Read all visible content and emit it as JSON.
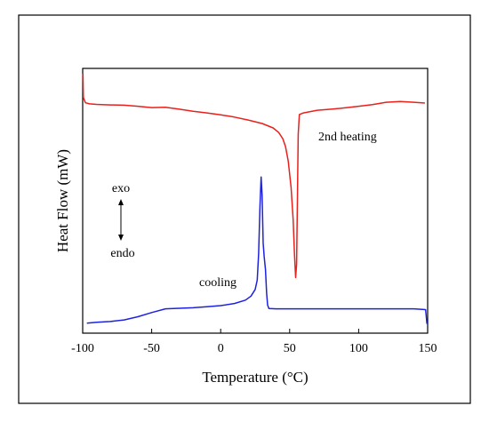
{
  "chart_data": {
    "type": "line",
    "title": "",
    "xlabel": "Temperature (°C)",
    "ylabel": "Heat Flow (mW)",
    "xlim": [
      -100,
      150
    ],
    "x_ticks": [
      "-100",
      "-50",
      "0",
      "50",
      "100",
      "150"
    ],
    "x_tick_values": [
      -100,
      -50,
      0,
      50,
      100,
      150
    ],
    "y_ticks": [],
    "ylim": [
      0,
      100
    ],
    "grid": false,
    "legend": "none",
    "annotations": {
      "heating_label": "2nd heating",
      "cooling_label": "cooling",
      "exo_label": "exo",
      "endo_label": "endo"
    },
    "series": [
      {
        "name": "2nd heating",
        "color": "#e8211c",
        "points": [
          [
            -99.8,
            98
          ],
          [
            -99.5,
            89
          ],
          [
            -98,
            87
          ],
          [
            -95,
            86.6
          ],
          [
            -90,
            86.4
          ],
          [
            -80,
            86.2
          ],
          [
            -70,
            86.1
          ],
          [
            -60,
            85.7
          ],
          [
            -50,
            85.2
          ],
          [
            -40,
            85.3
          ],
          [
            -30,
            84.6
          ],
          [
            -20,
            83.8
          ],
          [
            -10,
            83.2
          ],
          [
            0,
            82.5
          ],
          [
            10,
            81.6
          ],
          [
            20,
            80.5
          ],
          [
            30,
            79.2
          ],
          [
            38,
            77.5
          ],
          [
            42,
            75.8
          ],
          [
            45,
            73.5
          ],
          [
            47,
            70.5
          ],
          [
            49,
            65
          ],
          [
            51,
            55
          ],
          [
            52.5,
            43
          ],
          [
            53.5,
            30
          ],
          [
            54.3,
            21
          ],
          [
            55,
            26
          ],
          [
            55.6,
            50
          ],
          [
            56.2,
            75
          ],
          [
            57,
            82.6
          ],
          [
            60,
            83.2
          ],
          [
            70,
            84.2
          ],
          [
            80,
            84.6
          ],
          [
            90,
            85.1
          ],
          [
            100,
            85.7
          ],
          [
            110,
            86.3
          ],
          [
            120,
            87.2
          ],
          [
            130,
            87.5
          ],
          [
            140,
            87.2
          ],
          [
            148,
            86.9
          ]
        ]
      },
      {
        "name": "cooling",
        "color": "#1e22e0",
        "points": [
          [
            -97,
            3.8
          ],
          [
            -90,
            4.1
          ],
          [
            -80,
            4.4
          ],
          [
            -70,
            5.0
          ],
          [
            -60,
            6.2
          ],
          [
            -50,
            7.8
          ],
          [
            -40,
            9.2
          ],
          [
            -30,
            9.4
          ],
          [
            -20,
            9.6
          ],
          [
            -10,
            10
          ],
          [
            0,
            10.4
          ],
          [
            10,
            11.2
          ],
          [
            18,
            12.5
          ],
          [
            22,
            14
          ],
          [
            25,
            16.5
          ],
          [
            26.5,
            20
          ],
          [
            27.5,
            30
          ],
          [
            28.5,
            48
          ],
          [
            29.3,
            59
          ],
          [
            30,
            52
          ],
          [
            30.8,
            34
          ],
          [
            31.5,
            29
          ],
          [
            32.5,
            24
          ],
          [
            33.3,
            15
          ],
          [
            34,
            10.6
          ],
          [
            35,
            9.3
          ],
          [
            40,
            9.2
          ],
          [
            60,
            9.2
          ],
          [
            80,
            9.2
          ],
          [
            100,
            9.2
          ],
          [
            120,
            9.2
          ],
          [
            140,
            9.2
          ],
          [
            148.5,
            8.9
          ],
          [
            149.5,
            3.5
          ]
        ]
      }
    ]
  }
}
